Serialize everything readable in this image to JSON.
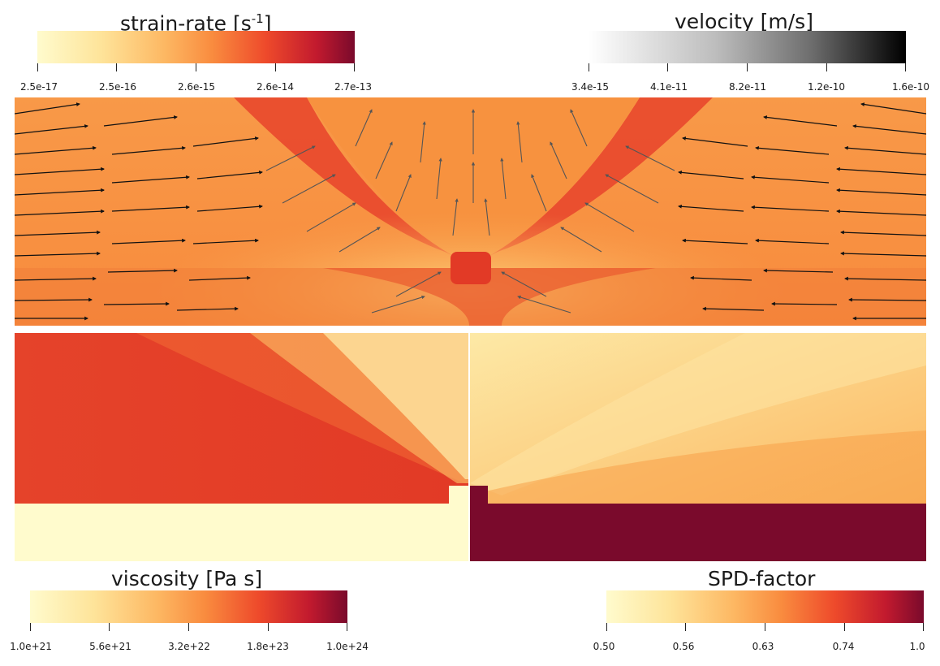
{
  "colorbars": {
    "strain_rate": {
      "title": "strain-rate [s",
      "title_sup": "-1",
      "title_end": "]",
      "ticks": [
        "2.5e-17",
        "2.5e-16",
        "2.6e-15",
        "2.6e-14",
        "2.7e-13"
      ]
    },
    "velocity": {
      "title": "velocity [m/s]",
      "ticks": [
        "3.4e-15",
        "4.1e-11",
        "8.2e-11",
        "1.2e-10",
        "1.6e-10"
      ]
    },
    "viscosity": {
      "title": "viscosity [Pa s]",
      "ticks": [
        "1.0e+21",
        "5.6e+21",
        "3.2e+22",
        "1.8e+23",
        "1.0e+24"
      ]
    },
    "spd_factor": {
      "title": "SPD-factor",
      "ticks": [
        "0.50",
        "0.56",
        "0.63",
        "0.74",
        "1.0"
      ]
    }
  },
  "colors": {
    "heat_low": "#fffbcd",
    "heat_mid": "#f98c3f",
    "heat_high": "#7a0a2c",
    "arrow_dark": "#1a1a1a",
    "arrow_mid": "#555555"
  }
}
